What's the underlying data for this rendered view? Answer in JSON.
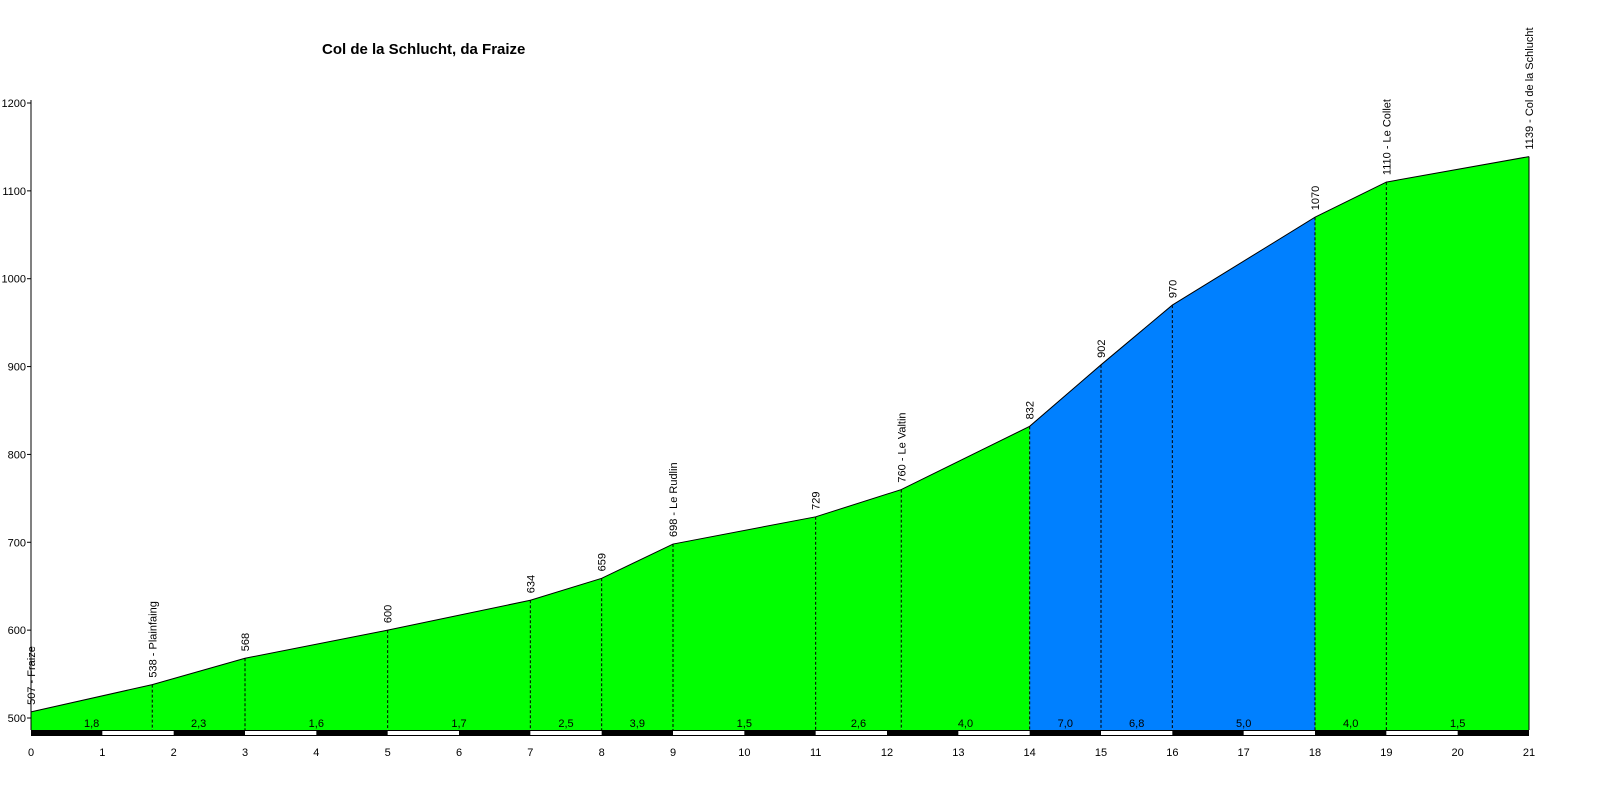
{
  "chart_data": {
    "type": "area",
    "title": "Col de la Schlucht, da Fraize",
    "xlabel": "",
    "ylabel": "",
    "xlim": [
      0,
      21
    ],
    "ylim": [
      480,
      1200
    ],
    "x_ticks": [
      "0",
      "1",
      "2",
      "3",
      "4",
      "5",
      "6",
      "7",
      "8",
      "9",
      "10",
      "11",
      "12",
      "13",
      "14",
      "15",
      "16",
      "17",
      "18",
      "19",
      "20",
      "21"
    ],
    "y_ticks": [
      "500",
      "600",
      "700",
      "800",
      "900",
      "1000",
      "1100",
      "1200"
    ],
    "y_tick_values": [
      500,
      600,
      700,
      800,
      900,
      1000,
      1100,
      1200
    ],
    "profile_points": [
      {
        "x": 0,
        "y": 507
      },
      {
        "x": 1.7,
        "y": 538
      },
      {
        "x": 3,
        "y": 568
      },
      {
        "x": 5,
        "y": 600
      },
      {
        "x": 7,
        "y": 634
      },
      {
        "x": 8,
        "y": 659
      },
      {
        "x": 9,
        "y": 698
      },
      {
        "x": 11,
        "y": 729
      },
      {
        "x": 12.2,
        "y": 760
      },
      {
        "x": 14,
        "y": 832
      },
      {
        "x": 15,
        "y": 902
      },
      {
        "x": 16,
        "y": 970
      },
      {
        "x": 18,
        "y": 1070
      },
      {
        "x": 19,
        "y": 1110
      },
      {
        "x": 21,
        "y": 1139
      }
    ],
    "annotations": [
      {
        "x": 0,
        "y": 507,
        "label": "507 - Fraize"
      },
      {
        "x": 1.7,
        "y": 538,
        "label": "538 - Plainfaing"
      },
      {
        "x": 3,
        "y": 568,
        "label": "568"
      },
      {
        "x": 5,
        "y": 600,
        "label": "600"
      },
      {
        "x": 7,
        "y": 634,
        "label": "634"
      },
      {
        "x": 8,
        "y": 659,
        "label": "659"
      },
      {
        "x": 9,
        "y": 698,
        "label": "698 - Le Rudlin"
      },
      {
        "x": 11,
        "y": 729,
        "label": "729"
      },
      {
        "x": 12.2,
        "y": 760,
        "label": "760 - Le Valtin"
      },
      {
        "x": 14,
        "y": 832,
        "label": "832"
      },
      {
        "x": 15,
        "y": 902,
        "label": "902"
      },
      {
        "x": 16,
        "y": 970,
        "label": "970"
      },
      {
        "x": 18,
        "y": 1070,
        "label": "1070"
      },
      {
        "x": 19,
        "y": 1110,
        "label": "1110 - Le Collet"
      },
      {
        "x": 21,
        "y": 1139,
        "label": "1139 - Col de la Schlucht"
      }
    ],
    "segments": [
      {
        "x_start": 0,
        "x_end": 1.7,
        "gradient": "1,8",
        "color": "#00ff00"
      },
      {
        "x_start": 1.7,
        "x_end": 3,
        "gradient": "2,3",
        "color": "#00ff00"
      },
      {
        "x_start": 3,
        "x_end": 5,
        "gradient": "1,6",
        "color": "#00ff00"
      },
      {
        "x_start": 5,
        "x_end": 7,
        "gradient": "1,7",
        "color": "#00ff00"
      },
      {
        "x_start": 7,
        "x_end": 8,
        "gradient": "2,5",
        "color": "#00ff00"
      },
      {
        "x_start": 8,
        "x_end": 9,
        "gradient": "3,9",
        "color": "#00ff00"
      },
      {
        "x_start": 9,
        "x_end": 11,
        "gradient": "1,5",
        "color": "#00ff00"
      },
      {
        "x_start": 11,
        "x_end": 12.2,
        "gradient": "2,6",
        "color": "#00ff00"
      },
      {
        "x_start": 12.2,
        "x_end": 14,
        "gradient": "4,0",
        "color": "#00ff00"
      },
      {
        "x_start": 14,
        "x_end": 15,
        "gradient": "7,0",
        "color": "#0080ff"
      },
      {
        "x_start": 15,
        "x_end": 16,
        "gradient": "6,8",
        "color": "#0080ff"
      },
      {
        "x_start": 16,
        "x_end": 18,
        "gradient": "5,0",
        "color": "#0080ff"
      },
      {
        "x_start": 18,
        "x_end": 19,
        "gradient": "4,0",
        "color": "#00ff00"
      },
      {
        "x_start": 19,
        "x_end": 21,
        "gradient": "1,5",
        "color": "#00ff00"
      }
    ],
    "km_bar_colors": [
      "#000000",
      "#ffffff"
    ],
    "grid": false,
    "legend": "none"
  }
}
